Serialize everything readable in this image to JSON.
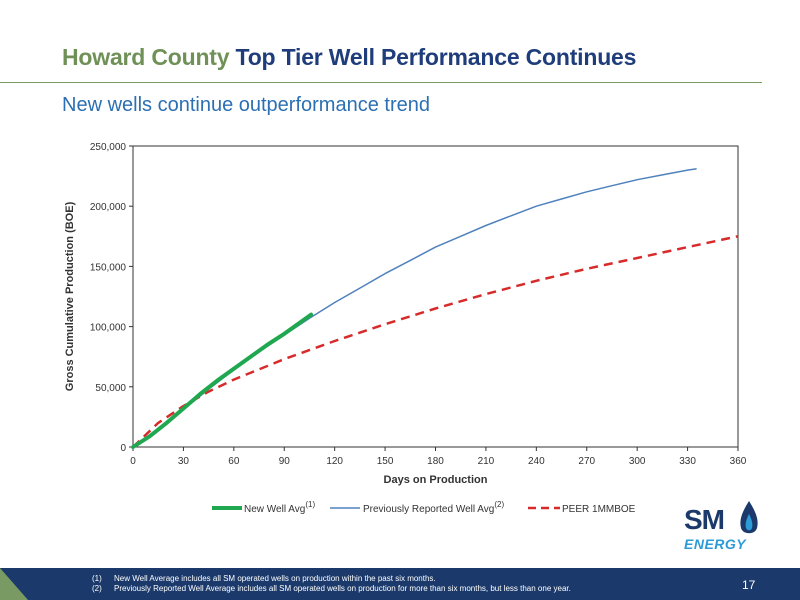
{
  "slide": {
    "title_part1": "Howard County",
    "title_part2": "Top Tier Well Performance Continues",
    "subtitle": "New wells continue outperformance trend",
    "page_number": "17",
    "footnotes": [
      {
        "num": "(1)",
        "text": "New Well Average includes all SM operated wells on production within the past six months."
      },
      {
        "num": "(2)",
        "text": "Previously Reported Well Average includes all SM operated wells on production for more than six months, but less than one year."
      }
    ],
    "logo": {
      "line1": "SM",
      "line2": "ENERGY"
    }
  },
  "colors": {
    "new_well": "#1fa84f",
    "previous": "#4f81bd",
    "peer": "#d72b2b",
    "title_green": "#6f9157",
    "title_blue": "#1f3d7a",
    "footer": "#1b3a6b"
  },
  "chart_data": {
    "type": "line",
    "title": "",
    "xlabel": "Days on Production",
    "ylabel": "Gross Cumulative Production (BOE)",
    "xlim": [
      0,
      360
    ],
    "ylim": [
      0,
      250000
    ],
    "x_ticks": [
      0,
      30,
      60,
      90,
      120,
      150,
      180,
      210,
      240,
      270,
      300,
      330,
      360
    ],
    "y_ticks": [
      0,
      50000,
      100000,
      150000,
      200000,
      250000
    ],
    "x_tick_labels": [
      "0",
      "30",
      "60",
      "90",
      "120",
      "150",
      "180",
      "210",
      "240",
      "270",
      "300",
      "330",
      "360"
    ],
    "y_tick_labels": [
      "0",
      "50,000",
      "100,000",
      "150,000",
      "200,000",
      "250,000"
    ],
    "grid": false,
    "legend_position": "bottom",
    "series": [
      {
        "name": "New Well Avg",
        "superscript": "(1)",
        "style": "solid-thick",
        "x": [
          0,
          10,
          20,
          30,
          40,
          50,
          60,
          70,
          80,
          90,
          100,
          106
        ],
        "y": [
          0,
          9000,
          20000,
          32000,
          44000,
          55000,
          65000,
          75000,
          85000,
          94000,
          104000,
          110000
        ]
      },
      {
        "name": "Previously Reported Well Avg",
        "superscript": "(2)",
        "style": "solid-thin",
        "x": [
          0,
          10,
          20,
          30,
          45,
          60,
          75,
          90,
          105,
          120,
          135,
          150,
          165,
          180,
          195,
          210,
          225,
          240,
          255,
          270,
          285,
          300,
          315,
          330,
          335
        ],
        "y": [
          0,
          8000,
          19000,
          31000,
          48000,
          64000,
          79000,
          93000,
          107000,
          120000,
          132000,
          144000,
          155000,
          166000,
          175000,
          184000,
          192000,
          200000,
          206000,
          212000,
          217000,
          222000,
          226000,
          230000,
          231000
        ]
      },
      {
        "name": "PEER 1MMBOE",
        "superscript": "",
        "style": "dashed",
        "x": [
          0,
          15,
          30,
          45,
          60,
          90,
          120,
          150,
          180,
          210,
          240,
          270,
          300,
          330,
          360
        ],
        "y": [
          0,
          20000,
          34000,
          46000,
          56000,
          73000,
          88000,
          102000,
          115000,
          127000,
          138000,
          148000,
          157000,
          166000,
          175000
        ]
      }
    ]
  }
}
